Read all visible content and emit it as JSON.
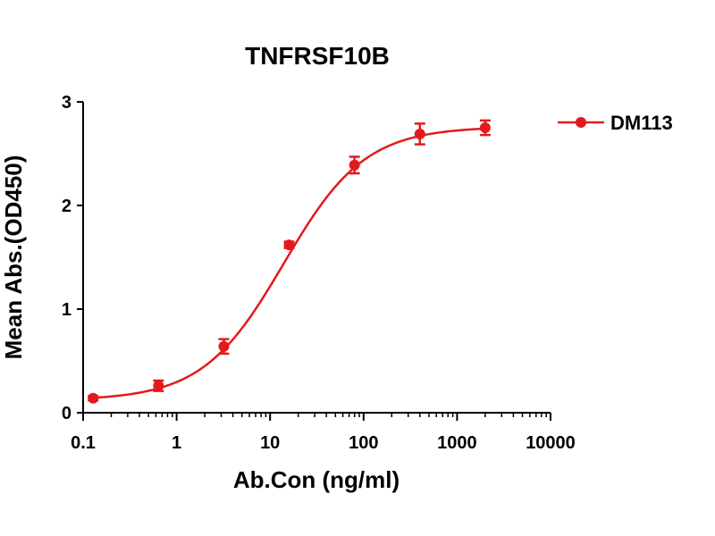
{
  "chart_data": {
    "type": "scatter",
    "title": "TNFRSF10B",
    "xlabel": "Ab.Con (ng/ml)",
    "ylabel": "Mean Abs.(OD450)",
    "x_scale": "log",
    "xlim": [
      0.1,
      10000
    ],
    "ylim": [
      0,
      3
    ],
    "x_ticks": [
      "0.1",
      "1",
      "10",
      "100",
      "1000",
      "10000"
    ],
    "y_ticks": [
      "0",
      "1",
      "2",
      "3"
    ],
    "grid": false,
    "legend_position": "top-right",
    "series": [
      {
        "name": "DM113",
        "color": "#e31a1c",
        "marker": "circle",
        "fit": "4PL",
        "points": [
          {
            "x": 0.128,
            "y": 0.14,
            "err": 0.02
          },
          {
            "x": 0.64,
            "y": 0.26,
            "err": 0.05
          },
          {
            "x": 3.2,
            "y": 0.64,
            "err": 0.07
          },
          {
            "x": 16,
            "y": 1.62,
            "err": 0.03
          },
          {
            "x": 80,
            "y": 2.39,
            "err": 0.08
          },
          {
            "x": 400,
            "y": 2.69,
            "err": 0.1
          },
          {
            "x": 2000,
            "y": 2.75,
            "err": 0.07
          }
        ]
      }
    ]
  }
}
